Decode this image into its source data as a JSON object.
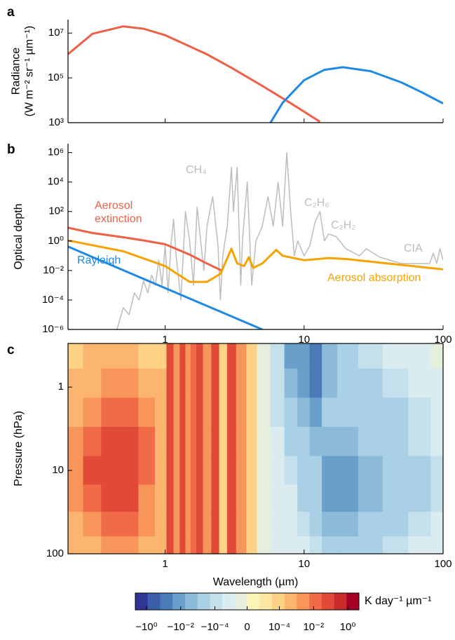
{
  "chart_data": [
    {
      "type": "line",
      "panel": "a",
      "ylabel": [
        "Radiance",
        "(W m⁻² sr⁻¹ µm⁻¹)"
      ],
      "xscale": "log",
      "yscale": "log",
      "xlim": [
        0.2,
        100
      ],
      "ylim": [
        1000,
        40000000
      ],
      "xticks": [
        1,
        10,
        100
      ],
      "xtick_labels": false,
      "yticks": [
        {
          "value": 1000,
          "label": "10³"
        },
        {
          "value": 100000,
          "label": "10⁵"
        },
        {
          "value": 10000000,
          "label": "10⁷"
        }
      ],
      "series": [
        {
          "color": "#ee5f47",
          "x": [
            0.2,
            0.3,
            0.5,
            0.7,
            1,
            2,
            3,
            5,
            8,
            13
          ],
          "values": [
            1150000,
            9300000,
            20000000,
            15700000,
            8100000,
            1130000,
            283000,
            44000,
            7400,
            1100
          ]
        },
        {
          "color": "#1e88e5",
          "x": [
            5.6,
            7,
            10,
            14,
            19,
            30,
            50,
            70,
            100
          ],
          "values": [
            800,
            7700,
            79000,
            230000,
            300000,
            200000,
            63000,
            23000,
            7200
          ]
        }
      ]
    },
    {
      "type": "line",
      "panel": "b",
      "ylabel": [
        "Optical depth"
      ],
      "xscale": "log",
      "yscale": "log",
      "xlim": [
        0.2,
        100
      ],
      "ylim": [
        1e-06,
        4000000
      ],
      "xticks": [
        1,
        10,
        100
      ],
      "yticks": [
        {
          "value": 1e-06,
          "label": "10⁻⁶"
        },
        {
          "value": 0.0001,
          "label": "10⁻⁴"
        },
        {
          "value": 0.01,
          "label": "10⁻²"
        },
        {
          "value": 1,
          "label": "10⁰"
        },
        {
          "value": 100,
          "label": "10²"
        },
        {
          "value": 10000,
          "label": "10⁴"
        },
        {
          "value": 1000000,
          "label": "10⁶"
        }
      ],
      "annotations": [
        "CH₄",
        "C₂H₆",
        "C₂H₂",
        "CIA"
      ],
      "series": [
        {
          "color": "#bdbdbd",
          "x": [
            0.45,
            0.5,
            0.55,
            0.6,
            0.65,
            0.7,
            0.75,
            0.8,
            0.85,
            0.9,
            0.95,
            1.0,
            1.05,
            1.1,
            1.15,
            1.2,
            1.3,
            1.4,
            1.5,
            1.6,
            1.7,
            1.8,
            1.9,
            2.0,
            2.2,
            2.4,
            2.5,
            2.6,
            2.8,
            3.0,
            3.1,
            3.3,
            3.5,
            3.6,
            3.9,
            4.2,
            4.5,
            5,
            5.5,
            6,
            6.5,
            7,
            7.5,
            8,
            8.5,
            9,
            10,
            11,
            12,
            13,
            14,
            15,
            17,
            20,
            25,
            28,
            35,
            50,
            80,
            85,
            90,
            95,
            100
          ],
          "values": [
            1e-06,
            3e-05,
            1e-05,
            0.0003,
            0.0001,
            0.002,
            0.0003,
            0.005,
            0.001,
            0.05,
            0.001,
            0.5,
            0.0003,
            0.5,
            30,
            0.1,
            0.0001,
            100,
            1,
            0.001,
            200,
            1,
            0.01,
            10,
            1000,
            0.5,
            0.0001,
            0.1,
            10,
            100000,
            100,
            100000,
            0.001,
            1,
            10000,
            0.001,
            1,
            10,
            1000,
            10,
            10000,
            10,
            1000000,
            100,
            0.1,
            1,
            0.1,
            0.5,
            20,
            100,
            1,
            3,
            2,
            0.3,
            0.1,
            0.3,
            0.08,
            0.03,
            0.03,
            0.15,
            0.03,
            0.3,
            0.05
          ]
        },
        {
          "name": "Aerosol extinction",
          "color": "#ee5f47",
          "x": [
            0.2,
            0.3,
            0.5,
            0.7,
            1,
            1.5,
            2,
            2.6
          ],
          "values": [
            8,
            3.5,
            1.8,
            1.1,
            0.6,
            0.12,
            0.03,
            0.009
          ]
        },
        {
          "name": "Rayleigh",
          "color": "#1e88e5",
          "x": [
            0.2,
            1,
            5
          ],
          "values": [
            0.42,
            0.00064,
            1e-06
          ]
        },
        {
          "name": "Aerosol absorption",
          "color": "#f5a300",
          "x": [
            0.2,
            0.5,
            1,
            1.5,
            2,
            2.5,
            3,
            3.3,
            3.7,
            4,
            4.3,
            5,
            6.3,
            7,
            10,
            15,
            20,
            40,
            100
          ],
          "values": [
            1.1,
            0.2,
            0.02,
            0.0017,
            0.0017,
            0.006,
            0.3,
            0.03,
            0.02,
            0.08,
            0.015,
            0.03,
            0.25,
            0.1,
            0.05,
            0.07,
            0.06,
            0.03,
            0.012
          ]
        }
      ]
    },
    {
      "type": "heatmap",
      "panel": "c",
      "ylabel": [
        "Pressure (hPa)"
      ],
      "xlabel": "Wavelength (µm)",
      "xscale": "log",
      "yscale": "log",
      "xlim": [
        0.2,
        100
      ],
      "ylim": [
        100,
        0.3
      ],
      "xticks": [
        1,
        10,
        100
      ],
      "yticks": [
        1,
        10,
        100
      ],
      "x": [
        0.22,
        0.3,
        0.4,
        0.55,
        0.75,
        0.95,
        1.1,
        1.2,
        1.35,
        1.45,
        1.6,
        1.75,
        2.0,
        2.3,
        2.6,
        3.0,
        3.5,
        4.2,
        5,
        6.5,
        8,
        10,
        12,
        15,
        20,
        30,
        45,
        70,
        95
      ],
      "y": [
        0.4,
        0.9,
        2,
        4.5,
        10,
        22,
        45,
        85
      ],
      "z": [
        [
          0.0001,
          0.0003,
          0.001,
          0.003,
          0.005,
          0.003,
          0.001,
          0.0003
        ],
        [
          0.0003,
          0.001,
          0.005,
          0.02,
          0.03,
          0.02,
          0.005,
          0.001
        ],
        [
          0.0003,
          0.002,
          0.01,
          0.04,
          0.08,
          0.04,
          0.01,
          0.002
        ],
        [
          0.0003,
          0.002,
          0.01,
          0.04,
          0.06,
          0.03,
          0.01,
          0.002
        ],
        [
          0.0001,
          0.001,
          0.003,
          0.01,
          0.01,
          0.005,
          0.002,
          0.0005
        ],
        [
          0.0001,
          0.0003,
          0.001,
          0.001,
          0.001,
          0.001,
          0.001,
          0.001
        ],
        [
          0.03,
          0.03,
          0.03,
          0.03,
          0.03,
          0.03,
          0.03,
          0.03
        ],
        [
          0.003,
          0.003,
          0.003,
          0.003,
          0.003,
          0.003,
          0.003,
          0.003
        ],
        [
          0.05,
          0.05,
          0.05,
          0.05,
          0.05,
          0.05,
          0.05,
          0.05
        ],
        [
          0.005,
          0.005,
          0.005,
          0.005,
          0.005,
          0.005,
          0.005,
          0.005
        ],
        [
          0.02,
          0.02,
          0.02,
          0.02,
          0.02,
          0.02,
          0.02,
          0.02
        ],
        [
          0.05,
          0.05,
          0.05,
          0.05,
          0.05,
          0.05,
          0.05,
          0.05
        ],
        [
          0.005,
          0.005,
          0.005,
          0.005,
          0.005,
          0.005,
          0.005,
          0.005
        ],
        [
          0.03,
          0.03,
          0.03,
          0.03,
          0.03,
          0.03,
          0.03,
          0.03
        ],
        [
          0.0001,
          0.0001,
          0.0001,
          0.0001,
          0.0001,
          0.0001,
          0.0001,
          0.0001
        ],
        [
          0.03,
          0.03,
          0.03,
          0.03,
          0.03,
          0.03,
          0.03,
          0.03
        ],
        [
          0.003,
          0.003,
          0.003,
          0.003,
          0.003,
          0.003,
          0.003,
          0.003
        ],
        [
          0.0001,
          0.0001,
          0.0001,
          0.0001,
          0.0001,
          0.0001,
          0.0001,
          0.0001
        ],
        [
          0,
          0,
          0,
          0,
          0,
          0,
          0,
          0
        ],
        [
          -0.0001,
          -0.0001,
          -0.0001,
          -3e-05,
          -1e-05,
          -1e-05,
          -1e-05,
          -1e-05
        ],
        [
          -0.01,
          -0.003,
          -0.001,
          -0.0003,
          -0.0001,
          -3e-05,
          -1e-05,
          -1e-05
        ],
        [
          -0.01,
          -0.01,
          -0.003,
          -0.001,
          -0.0003,
          -0.0003,
          -0.0001,
          -3e-05
        ],
        [
          -0.1,
          -0.03,
          -0.01,
          -0.003,
          -0.001,
          -0.001,
          -0.0003,
          -0.0001
        ],
        [
          -0.003,
          -0.003,
          -0.001,
          -0.003,
          -0.01,
          -0.01,
          -0.003,
          -0.001
        ],
        [
          -0.001,
          -0.001,
          -0.001,
          -0.003,
          -0.01,
          -0.01,
          -0.003,
          -0.001
        ],
        [
          -0.0001,
          -0.0003,
          -0.001,
          -0.001,
          -0.003,
          -0.003,
          -0.001,
          -0.0003
        ],
        [
          -3e-05,
          -0.0001,
          -0.0003,
          -0.0003,
          -0.001,
          -0.001,
          -0.0003,
          -0.0001
        ],
        [
          -1e-05,
          -3e-05,
          -0.0001,
          -0.0001,
          -0.0003,
          -0.0003,
          -0.0001,
          -3e-05
        ],
        [
          0,
          -1e-05,
          -3e-05,
          -3e-05,
          -0.0001,
          -0.0001,
          -3e-05,
          -1e-05
        ]
      ],
      "colorbar": {
        "label": "K day⁻¹ µm⁻¹",
        "lim": [
          -4.5,
          4.5
        ],
        "linthresh": 1.3e-06,
        "colors": [
          "#313695",
          "#3a5fa8",
          "#4a7bb7",
          "#6a9fcb",
          "#8cbad9",
          "#a9d0e5",
          "#c4e0ec",
          "#dbecf0",
          "#e6efdc",
          "#fbf3b8",
          "#fde6a0",
          "#fdd287",
          "#fcb56e",
          "#f8955a",
          "#f06b48",
          "#e04a36",
          "#c92b2a",
          "#a50026"
        ],
        "ticks": [
          {
            "value": -1,
            "label": "−10⁰"
          },
          {
            "value": -0.01,
            "label": "−10⁻²"
          },
          {
            "value": -0.0001,
            "label": "−10⁻⁴"
          },
          0,
          {
            "value": 0.0001,
            "label": "10⁻⁴"
          },
          {
            "value": 0.01,
            "label": "10⁻²"
          },
          {
            "value": 1,
            "label": "10⁰"
          }
        ]
      }
    }
  ]
}
